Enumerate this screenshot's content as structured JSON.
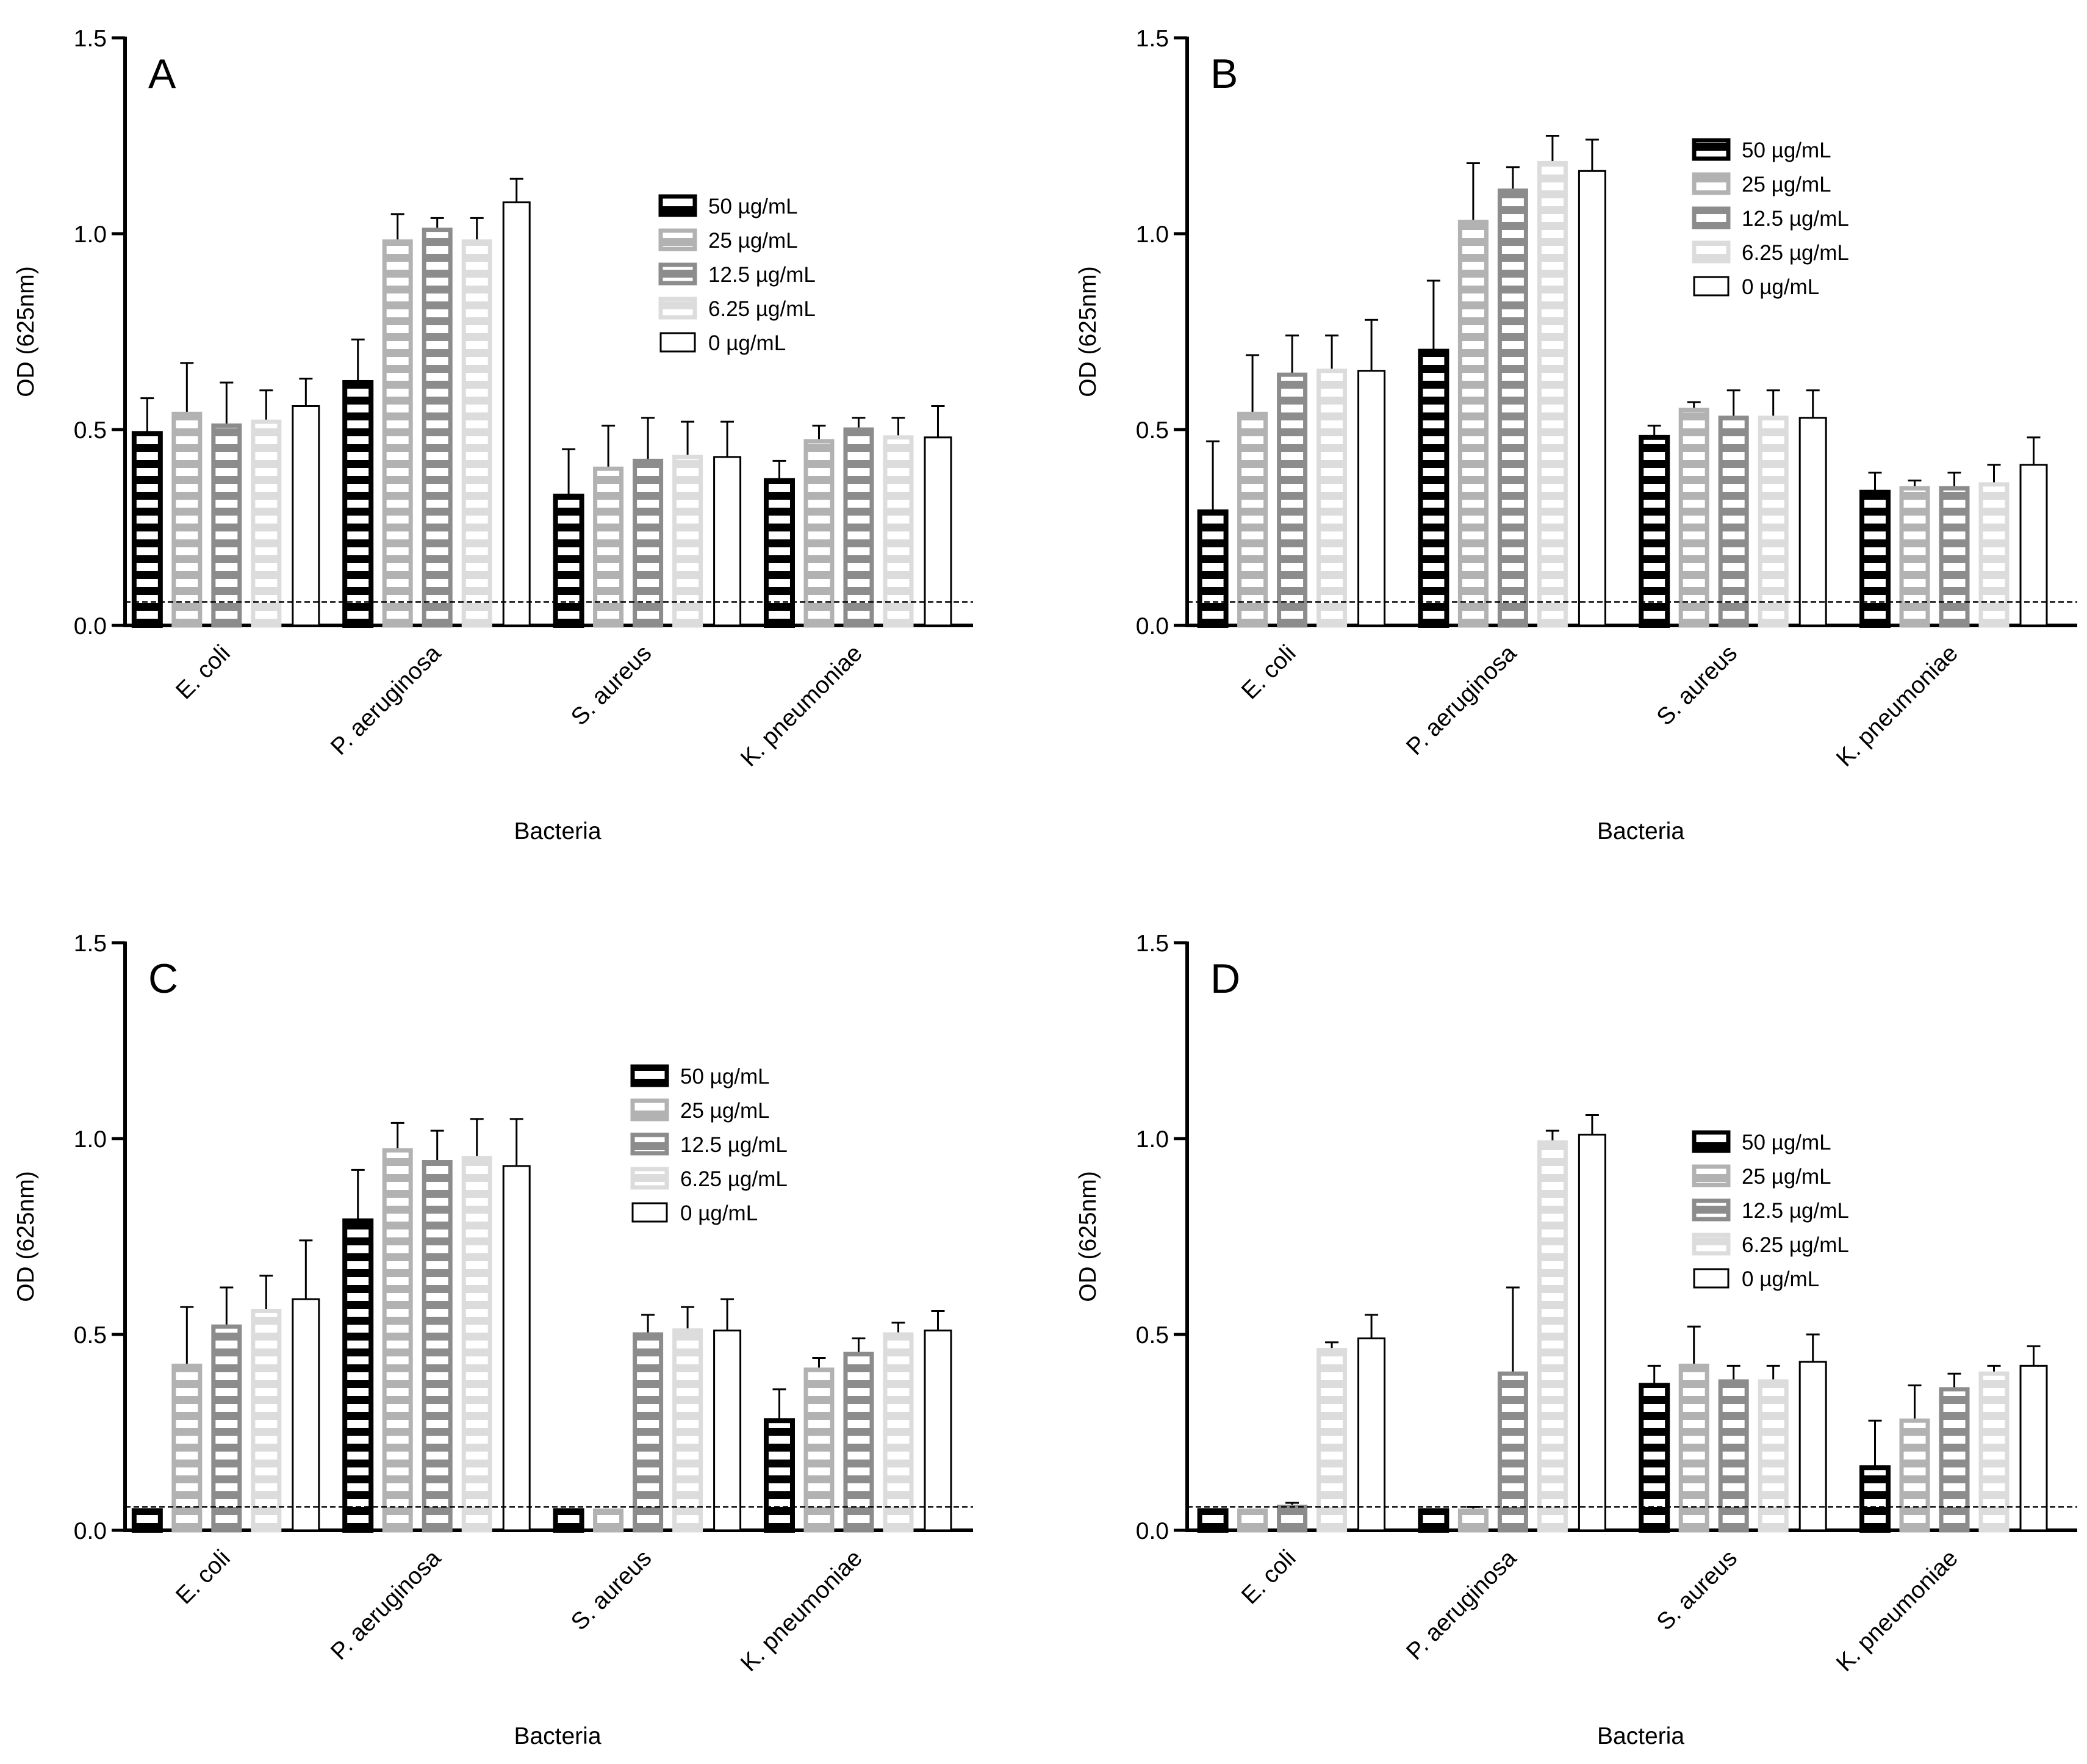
{
  "chart_data": [
    {
      "panel": "A",
      "type": "bar",
      "ylabel": "OD (625nm)",
      "xlabel": "Bacteria",
      "ylim": [
        0,
        1.5
      ],
      "yticks": [
        "0.0",
        "0.5",
        "1.0",
        "1.5"
      ],
      "threshold": 0.06,
      "categories": [
        "E. coli",
        "P. aeruginosa",
        "S. aureus",
        "K. pneumoniae"
      ],
      "series": [
        {
          "name": "50 µg/mL",
          "values": [
            0.49,
            0.62,
            0.33,
            0.37
          ],
          "errors": [
            0.09,
            0.11,
            0.12,
            0.05
          ]
        },
        {
          "name": "25 µg/mL",
          "values": [
            0.54,
            0.98,
            0.4,
            0.47
          ],
          "errors": [
            0.13,
            0.07,
            0.11,
            0.04
          ]
        },
        {
          "name": "12.5 µg/mL",
          "values": [
            0.51,
            1.01,
            0.42,
            0.5
          ],
          "errors": [
            0.11,
            0.03,
            0.11,
            0.03
          ]
        },
        {
          "name": "6.25 µg/mL",
          "values": [
            0.52,
            0.98,
            0.43,
            0.48
          ],
          "errors": [
            0.08,
            0.06,
            0.09,
            0.05
          ]
        },
        {
          "name": "0 µg/mL",
          "values": [
            0.56,
            1.08,
            0.43,
            0.48
          ],
          "errors": [
            0.07,
            0.06,
            0.09,
            0.08
          ]
        }
      ]
    },
    {
      "panel": "B",
      "type": "bar",
      "ylabel": "OD (625nm)",
      "xlabel": "Bacteria",
      "ylim": [
        0,
        1.5
      ],
      "yticks": [
        "0.0",
        "0.5",
        "1.0",
        "1.5"
      ],
      "threshold": 0.06,
      "categories": [
        "E. coli",
        "P. aeruginosa",
        "S. aureus",
        "K. pneumoniae"
      ],
      "series": [
        {
          "name": "50 µg/mL",
          "values": [
            0.29,
            0.7,
            0.48,
            0.34
          ],
          "errors": [
            0.18,
            0.18,
            0.03,
            0.05
          ]
        },
        {
          "name": "25 µg/mL",
          "values": [
            0.54,
            1.03,
            0.55,
            0.35
          ],
          "errors": [
            0.15,
            0.15,
            0.02,
            0.02
          ]
        },
        {
          "name": "12.5 µg/mL",
          "values": [
            0.64,
            1.11,
            0.53,
            0.35
          ],
          "errors": [
            0.1,
            0.06,
            0.07,
            0.04
          ]
        },
        {
          "name": "6.25 µg/mL",
          "values": [
            0.65,
            1.18,
            0.53,
            0.36
          ],
          "errors": [
            0.09,
            0.07,
            0.07,
            0.05
          ]
        },
        {
          "name": "0 µg/mL",
          "values": [
            0.65,
            1.16,
            0.53,
            0.41
          ],
          "errors": [
            0.13,
            0.08,
            0.07,
            0.07
          ]
        }
      ]
    },
    {
      "panel": "C",
      "type": "bar",
      "ylabel": "OD (625nm)",
      "xlabel": "Bacteria",
      "ylim": [
        0,
        1.5
      ],
      "yticks": [
        "0.0",
        "0.5",
        "1.0",
        "1.5"
      ],
      "threshold": 0.06,
      "categories": [
        "E. coli",
        "P. aeruginosa",
        "S. aureus",
        "K. pneumoniae"
      ],
      "series": [
        {
          "name": "50 µg/mL",
          "values": [
            0.05,
            0.79,
            0.05,
            0.28
          ],
          "errors": [
            0.0,
            0.13,
            0.0,
            0.08
          ]
        },
        {
          "name": "25 µg/mL",
          "values": [
            0.42,
            0.97,
            0.05,
            0.41
          ],
          "errors": [
            0.15,
            0.07,
            0.0,
            0.03
          ]
        },
        {
          "name": "12.5 µg/mL",
          "values": [
            0.52,
            0.94,
            0.5,
            0.45
          ],
          "errors": [
            0.1,
            0.08,
            0.05,
            0.04
          ]
        },
        {
          "name": "6.25 µg/mL",
          "values": [
            0.56,
            0.95,
            0.51,
            0.5
          ],
          "errors": [
            0.09,
            0.1,
            0.06,
            0.03
          ]
        },
        {
          "name": "0 µg/mL",
          "values": [
            0.59,
            0.93,
            0.51,
            0.51
          ],
          "errors": [
            0.15,
            0.12,
            0.08,
            0.05
          ]
        }
      ]
    },
    {
      "panel": "D",
      "type": "bar",
      "ylabel": "OD (625nm)",
      "xlabel": "Bacteria",
      "ylim": [
        0,
        1.5
      ],
      "yticks": [
        "0.0",
        "0.5",
        "1.0",
        "1.5"
      ],
      "threshold": 0.06,
      "categories": [
        "E. coli",
        "P. aeruginosa",
        "S. aureus",
        "K. pneumoniae"
      ],
      "series": [
        {
          "name": "50 µg/mL",
          "values": [
            0.05,
            0.05,
            0.37,
            0.16
          ],
          "errors": [
            0.0,
            0.0,
            0.05,
            0.12
          ]
        },
        {
          "name": "25 µg/mL",
          "values": [
            0.05,
            0.05,
            0.42,
            0.28
          ],
          "errors": [
            0.0,
            0.01,
            0.1,
            0.09
          ]
        },
        {
          "name": "12.5 µg/mL",
          "values": [
            0.06,
            0.4,
            0.38,
            0.36
          ],
          "errors": [
            0.01,
            0.22,
            0.04,
            0.04
          ]
        },
        {
          "name": "6.25 µg/mL",
          "values": [
            0.46,
            0.99,
            0.38,
            0.4
          ],
          "errors": [
            0.02,
            0.03,
            0.04,
            0.02
          ]
        },
        {
          "name": "0 µg/mL",
          "values": [
            0.49,
            1.01,
            0.43,
            0.42
          ],
          "errors": [
            0.06,
            0.05,
            0.07,
            0.05
          ]
        }
      ]
    }
  ]
}
